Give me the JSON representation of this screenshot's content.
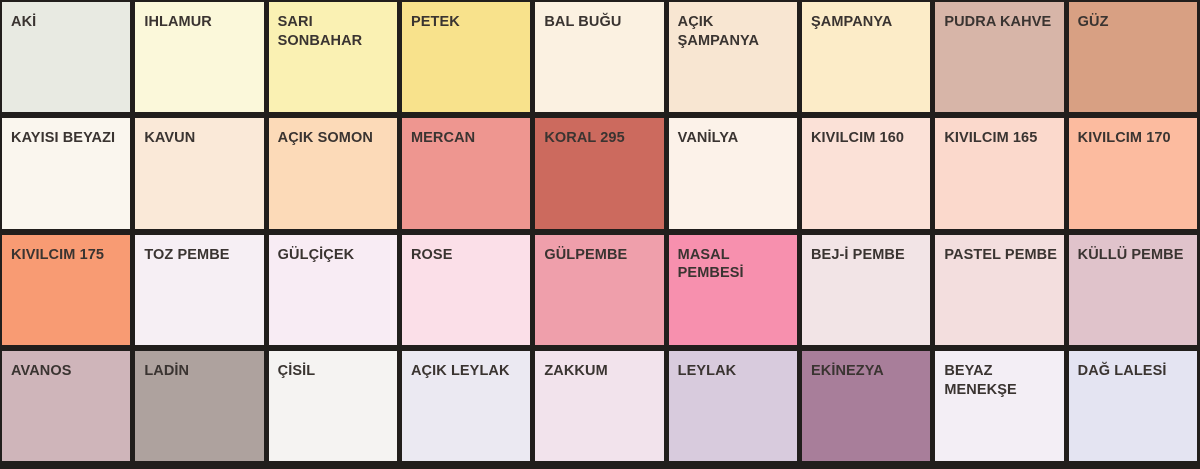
{
  "chart_data": {
    "type": "table",
    "title": "Paint color swatch chart (Turkish color names)",
    "columns": 9,
    "rows": 4,
    "legend_position": "none",
    "grid": true,
    "cells": [
      {
        "name": "AKİ",
        "color": "#e8eae2"
      },
      {
        "name": "IHLAMUR",
        "color": "#fbf8da"
      },
      {
        "name": "SARI SONBAHAR",
        "color": "#faf1b3"
      },
      {
        "name": "PETEK",
        "color": "#f8e28c"
      },
      {
        "name": "BAL BUĞU",
        "color": "#fbf1e1"
      },
      {
        "name": "AÇIK ŞAMPANYA",
        "color": "#f8e6d2"
      },
      {
        "name": "ŞAMPANYA",
        "color": "#fcecc8"
      },
      {
        "name": "PUDRA KAHVE",
        "color": "#d7b5a8"
      },
      {
        "name": "GÜZ",
        "color": "#d8a083"
      },
      {
        "name": "KAYISI BEYAZI",
        "color": "#faf6ee"
      },
      {
        "name": "KAVUN",
        "color": "#fae9d8"
      },
      {
        "name": "AÇIK SOMON",
        "color": "#fcdab8"
      },
      {
        "name": "MERCAN",
        "color": "#ee9690"
      },
      {
        "name": "KORAL 295",
        "color": "#cc6a5e"
      },
      {
        "name": "VANİLYA",
        "color": "#fcf2e9"
      },
      {
        "name": "KIVILCIM 160",
        "color": "#fbe1d7"
      },
      {
        "name": "KIVILCIM 165",
        "color": "#fbd9cc"
      },
      {
        "name": "KIVILCIM 170",
        "color": "#fcbb9f"
      },
      {
        "name": "KIVILCIM 175",
        "color": "#f89b73"
      },
      {
        "name": "TOZ PEMBE",
        "color": "#f6eff4"
      },
      {
        "name": "GÜLÇİÇEK",
        "color": "#f8ecf4"
      },
      {
        "name": "ROSE",
        "color": "#fbdfe8"
      },
      {
        "name": "GÜLPEMBE",
        "color": "#ef9fab"
      },
      {
        "name": "MASAL PEMBESİ",
        "color": "#f790ae"
      },
      {
        "name": "BEJ-İ PEMBE",
        "color": "#f2e4e6"
      },
      {
        "name": "PASTEL PEMBE",
        "color": "#f3dede"
      },
      {
        "name": "KÜLLÜ PEMBE",
        "color": "#e0c3cb"
      },
      {
        "name": "AVANOS",
        "color": "#cfb5ba"
      },
      {
        "name": "LADİN",
        "color": "#aea29e"
      },
      {
        "name": "ÇİSİL",
        "color": "#f5f3f2"
      },
      {
        "name": "AÇIK LEYLAK",
        "color": "#ebe9f2"
      },
      {
        "name": "ZAKKUM",
        "color": "#f2e3ec"
      },
      {
        "name": "LEYLAK",
        "color": "#d8cbdd"
      },
      {
        "name": "EKİNEZYA",
        "color": "#a87e9a"
      },
      {
        "name": "BEYAZ MENEKŞE",
        "color": "#f3eef5"
      },
      {
        "name": "DAĞ LALESİ",
        "color": "#e4e4f2"
      }
    ]
  },
  "style": {
    "grout_color": "#211e1c",
    "label_color": "#3a3431"
  }
}
